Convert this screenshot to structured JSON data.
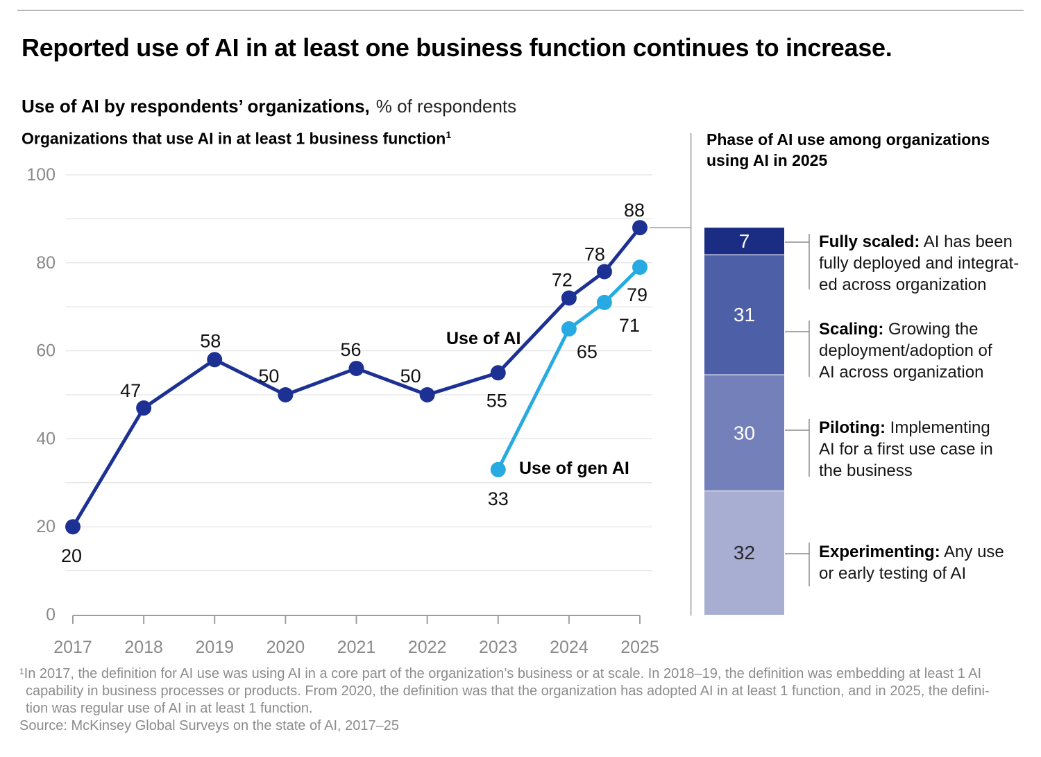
{
  "header": {
    "title": "Reported use of AI in at least one business function continues to increase.",
    "subtitle_bold": "Use of AI by respondents’ organizations,",
    "subtitle_regular": "% of respondents"
  },
  "panels": {
    "left_header": "Organizations that use AI in at least 1 business function",
    "left_header_footnote_marker": "1",
    "right_header": "Phase of AI use among organizations using AI in 2025"
  },
  "chart_data": [
    {
      "type": "line",
      "title": "Organizations that use AI in at least 1 business function",
      "xticks": [
        "2017",
        "2018",
        "2019",
        "2020",
        "2021",
        "2022",
        "2023",
        "2024",
        "2025"
      ],
      "yticks": [
        0,
        20,
        40,
        60,
        80,
        100
      ],
      "ylim": [
        0,
        100
      ],
      "grid": "horizontal gridlines every 10, y labels every 20",
      "legend_position": "inline labels next to lines",
      "axis_color": "#9e9e9e",
      "grid_color": "#dcdcdc",
      "tick_label_color": "#8a8a8a",
      "series": [
        {
          "name": "Use of AI",
          "color": "#1c3193",
          "x": [
            2017,
            2018,
            2019,
            2020,
            2021,
            2022,
            2023,
            2024,
            2024.5,
            2025
          ],
          "values": [
            20,
            47,
            58,
            50,
            56,
            50,
            55,
            72,
            78,
            88
          ]
        },
        {
          "name": "Use of gen AI",
          "color": "#27aae1",
          "x": [
            2023,
            2024,
            2024.5,
            2025
          ],
          "values": [
            33,
            65,
            71,
            79
          ]
        }
      ]
    },
    {
      "type": "bar",
      "stacked": true,
      "title": "Phase of AI use among organizations using AI in 2025",
      "connector_from_value": 88,
      "segments": [
        {
          "label": "Fully scaled",
          "value": 7,
          "color": "#1b2d82",
          "value_text_color": "#ffffff",
          "desc_term": "Fully scaled:",
          "desc_lines": [
            "AI has been",
            "fully deployed and integrat-",
            "ed across organization"
          ]
        },
        {
          "label": "Scaling",
          "value": 31,
          "color": "#4d5fa6",
          "value_text_color": "#ffffff",
          "desc_term": "Scaling:",
          "desc_lines": [
            "Growing the",
            "deployment/adoption of",
            "AI across organization"
          ]
        },
        {
          "label": "Piloting",
          "value": 30,
          "color": "#7380b9",
          "value_text_color": "#ffffff",
          "desc_term": "Piloting:",
          "desc_lines": [
            "Implementing",
            "AI for a first use case in",
            "the business"
          ]
        },
        {
          "label": "Experimenting",
          "value": 32,
          "color": "#a7aed2",
          "value_text_color": "#26262e",
          "desc_term": "Experimenting:",
          "desc_lines": [
            "Any use",
            "or early testing of AI"
          ]
        }
      ]
    }
  ],
  "footnote": {
    "lines": [
      "¹In 2017, the definition for AI use was using AI in a core part of the organization’s business or at scale. In 2018–19, the definition was embedding at least 1 AI",
      "capability in business processes or products. From 2020, the definition was that the organization has adopted AI in at least 1 function, and in 2025, the defini-",
      "tion was regular use of AI in at least 1 function."
    ],
    "source": "Source: McKinsey Global Surveys on the state of AI, 2017–25"
  }
}
